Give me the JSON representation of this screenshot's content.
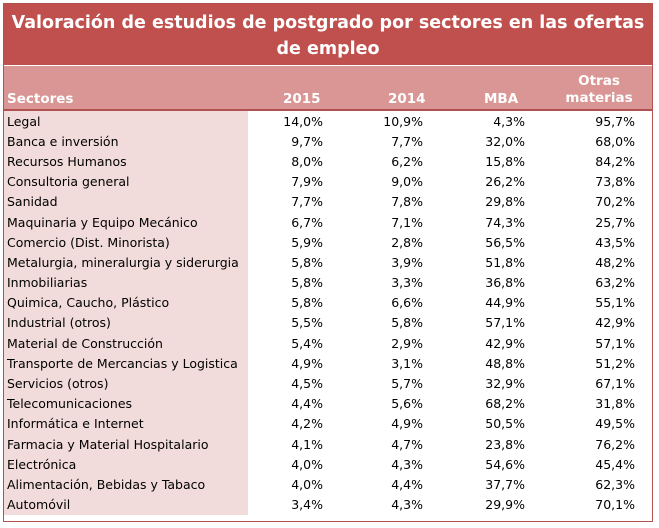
{
  "title": "Valoración de estudios de postgrado por sectores en las ofertas de empleo",
  "headers": {
    "sector": "Sectores",
    "y2015": "2015",
    "y2014": "2014",
    "mba": "MBA",
    "otras": "Otras materias"
  },
  "rows": [
    {
      "sector": "Legal",
      "y2015": "14,0%",
      "y2014": "10,9%",
      "mba": "4,3%",
      "otras": "95,7%"
    },
    {
      "sector": "Banca e inversión",
      "y2015": "9,7%",
      "y2014": "7,7%",
      "mba": "32,0%",
      "otras": "68,0%"
    },
    {
      "sector": "Recursos Humanos",
      "y2015": "8,0%",
      "y2014": "6,2%",
      "mba": "15,8%",
      "otras": "84,2%"
    },
    {
      "sector": "Consultoria general",
      "y2015": "7,9%",
      "y2014": "9,0%",
      "mba": "26,2%",
      "otras": "73,8%"
    },
    {
      "sector": "Sanidad",
      "y2015": "7,7%",
      "y2014": "7,8%",
      "mba": "29,8%",
      "otras": "70,2%"
    },
    {
      "sector": "Maquinaria y Equipo Mecánico",
      "y2015": "6,7%",
      "y2014": "7,1%",
      "mba": "74,3%",
      "otras": "25,7%"
    },
    {
      "sector": "Comercio (Dist. Minorista)",
      "y2015": "5,9%",
      "y2014": "2,8%",
      "mba": "56,5%",
      "otras": "43,5%"
    },
    {
      "sector": "Metalurgia, mineralurgia y siderurgia",
      "y2015": "5,8%",
      "y2014": "3,9%",
      "mba": "51,8%",
      "otras": "48,2%"
    },
    {
      "sector": "Inmobiliarias",
      "y2015": "5,8%",
      "y2014": "3,3%",
      "mba": "36,8%",
      "otras": "63,2%"
    },
    {
      "sector": "Quimica, Caucho, Plástico",
      "y2015": "5,8%",
      "y2014": "6,6%",
      "mba": "44,9%",
      "otras": "55,1%"
    },
    {
      "sector": "Industrial (otros)",
      "y2015": "5,5%",
      "y2014": "5,8%",
      "mba": "57,1%",
      "otras": "42,9%"
    },
    {
      "sector": "Material de Construcción",
      "y2015": "5,4%",
      "y2014": "2,9%",
      "mba": "42,9%",
      "otras": "57,1%"
    },
    {
      "sector": "Transporte de Mercancias y Logistica",
      "y2015": "4,9%",
      "y2014": "3,1%",
      "mba": "48,8%",
      "otras": "51,2%"
    },
    {
      "sector": "Servicios (otros)",
      "y2015": "4,5%",
      "y2014": "5,7%",
      "mba": "32,9%",
      "otras": "67,1%"
    },
    {
      "sector": "Telecomunicaciones",
      "y2015": "4,4%",
      "y2014": "5,6%",
      "mba": "68,2%",
      "otras": "31,8%"
    },
    {
      "sector": "Informática e Internet",
      "y2015": "4,2%",
      "y2014": "4,9%",
      "mba": "50,5%",
      "otras": "49,5%"
    },
    {
      "sector": "Farmacia y Material Hospitalario",
      "y2015": "4,1%",
      "y2014": "4,7%",
      "mba": "23,8%",
      "otras": "76,2%"
    },
    {
      "sector": "Electrónica",
      "y2015": "4,0%",
      "y2014": "4,3%",
      "mba": "54,6%",
      "otras": "45,4%"
    },
    {
      "sector": "Alimentación, Bebidas y Tabaco",
      "y2015": "4,0%",
      "y2014": "4,4%",
      "mba": "37,7%",
      "otras": "62,3%"
    },
    {
      "sector": "Automóvil",
      "y2015": "3,4%",
      "y2014": "4,3%",
      "mba": "29,9%",
      "otras": "70,1%"
    }
  ],
  "colors": {
    "title_bg": "#c0504d",
    "header_bg": "#d99694",
    "sector_col_bg": "#f2dcdb"
  }
}
